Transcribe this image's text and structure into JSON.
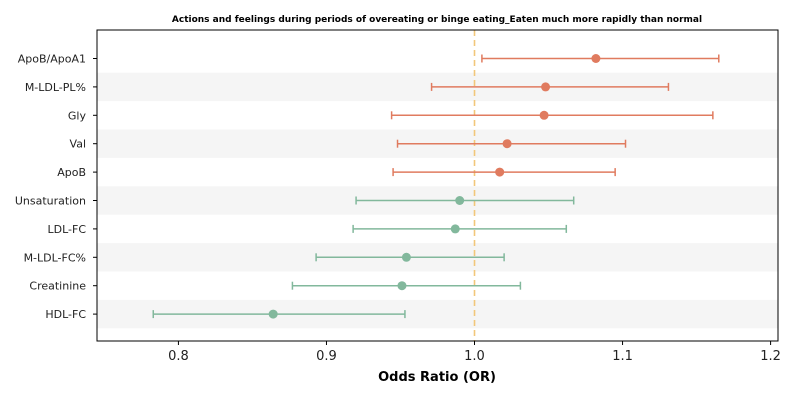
{
  "chart_data": {
    "type": "scatter",
    "subtype": "forest-plot",
    "title": "Actions and feelings during periods of overeating or binge eating_Eaten much more rapidly than normal",
    "xlabel": "Odds Ratio (OR)",
    "ylabel": "",
    "xlim": [
      0.745,
      1.205
    ],
    "xticks": [
      0.8,
      0.9,
      1.0,
      1.1,
      1.2
    ],
    "xtick_labels": [
      "0.8",
      "0.9",
      "1.0",
      "1.1",
      "1.2"
    ],
    "reference_line": 1.0,
    "grid": false,
    "alternating_row_shading": true,
    "colors": {
      "positive": "#e07b5f",
      "negative": "#82b89c",
      "reference": "#f2c77a",
      "row_shade": "#f5f5f5"
    },
    "rows": [
      {
        "label": "ApoB/ApoA1",
        "or": 1.082,
        "lower": 1.005,
        "upper": 1.165,
        "group": "positive"
      },
      {
        "label": "M-LDL-PL%",
        "or": 1.048,
        "lower": 0.971,
        "upper": 1.131,
        "group": "positive"
      },
      {
        "label": "Gly",
        "or": 1.047,
        "lower": 0.944,
        "upper": 1.161,
        "group": "positive"
      },
      {
        "label": "Val",
        "or": 1.022,
        "lower": 0.948,
        "upper": 1.102,
        "group": "positive"
      },
      {
        "label": "ApoB",
        "or": 1.017,
        "lower": 0.945,
        "upper": 1.095,
        "group": "positive"
      },
      {
        "label": "Unsaturation",
        "or": 0.99,
        "lower": 0.92,
        "upper": 1.067,
        "group": "negative"
      },
      {
        "label": "LDL-FC",
        "or": 0.987,
        "lower": 0.918,
        "upper": 1.062,
        "group": "negative"
      },
      {
        "label": "M-LDL-FC%",
        "or": 0.954,
        "lower": 0.893,
        "upper": 1.02,
        "group": "negative"
      },
      {
        "label": "Creatinine",
        "or": 0.951,
        "lower": 0.877,
        "upper": 1.031,
        "group": "negative"
      },
      {
        "label": "HDL-FC",
        "or": 0.864,
        "lower": 0.783,
        "upper": 0.953,
        "group": "negative"
      }
    ]
  }
}
